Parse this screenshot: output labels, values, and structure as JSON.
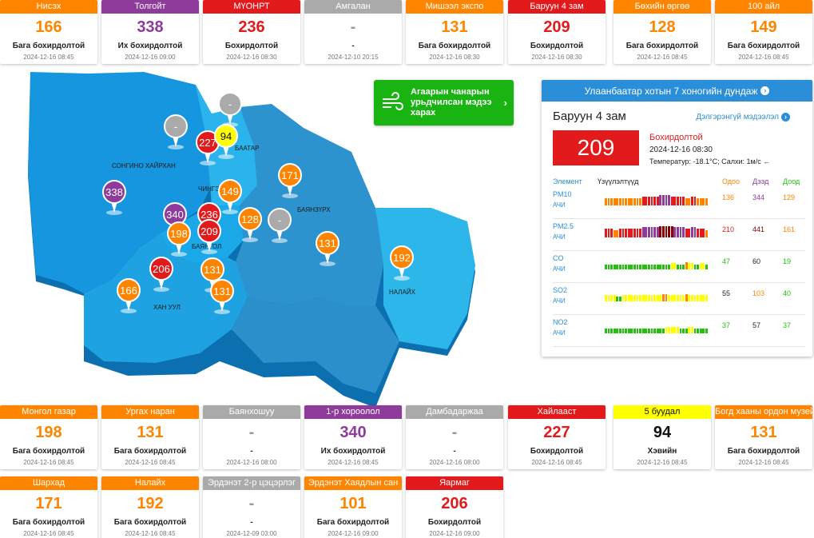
{
  "colors": {
    "good": "#20c20e",
    "moderate": "#ffff00",
    "low": "#ff8400",
    "high": "#e31a1c",
    "very_high": "#8e3b9c",
    "nodata": "#aaaaaa",
    "accent": "#2a8fd8",
    "forecast": "#19b312"
  },
  "top_cards": [
    {
      "name": "Нисэх",
      "value": "166",
      "status": "Бага бохирдолтой",
      "time": "2024-12-16 08:45",
      "level": "low"
    },
    {
      "name": "Толгойт",
      "value": "338",
      "status": "Их бохирдолтой",
      "time": "2024-12-16 09:00",
      "level": "very_high"
    },
    {
      "name": "МҮОНРТ",
      "value": "236",
      "status": "Бохирдолтой",
      "time": "2024-12-16 08:30",
      "level": "high"
    },
    {
      "name": "Амгалан",
      "value": "-",
      "status": "-",
      "time": "2024-12-10 20:15",
      "level": "nodata"
    },
    {
      "name": "Мишээл экспо",
      "value": "131",
      "status": "Бага бохирдолтой",
      "time": "2024-12-16 08:30",
      "level": "low"
    },
    {
      "name": "Баруун 4 зам",
      "value": "209",
      "status": "Бохирдолтой",
      "time": "2024-12-16 08:30",
      "level": "high"
    },
    {
      "name": "Бөхийн өргөө",
      "value": "128",
      "status": "Бага бохирдолтой",
      "time": "2024-12-16 08:45",
      "level": "low"
    },
    {
      "name": "100 айл",
      "value": "149",
      "status": "Бага бохирдолтой",
      "time": "2024-12-16 08:45",
      "level": "low"
    }
  ],
  "bottom_cards_row1": [
    {
      "name": "Монгол газар",
      "value": "198",
      "status": "Бага бохирдолтой",
      "time": "2024-12-16 08:45",
      "level": "low"
    },
    {
      "name": "Ургах наран",
      "value": "131",
      "status": "Бага бохирдолтой",
      "time": "2024-12-16 08:45",
      "level": "low"
    },
    {
      "name": "Баянхошуу",
      "value": "-",
      "status": "-",
      "time": "2024-12-16 08:00",
      "level": "nodata"
    },
    {
      "name": "1-р хороолол",
      "value": "340",
      "status": "Их бохирдолтой",
      "time": "2024-12-16 08:45",
      "level": "very_high"
    },
    {
      "name": "Дамбадаржаа",
      "value": "-",
      "status": "-",
      "time": "2024-12-16 08:00",
      "level": "nodata"
    },
    {
      "name": "Хайлааст",
      "value": "227",
      "status": "Бохирдолтой",
      "time": "2024-12-16 08:45",
      "level": "high"
    },
    {
      "name": "5 буудал",
      "value": "94",
      "status": "Хэвийн",
      "time": "2024-12-16 08:45",
      "level": "moderate"
    },
    {
      "name": "Богд хааны ордон музей",
      "value": "131",
      "status": "Бага бохирдолтой",
      "time": "2024-12-16 08:45",
      "level": "low"
    }
  ],
  "bottom_cards_row2": [
    {
      "name": "Шархад",
      "value": "171",
      "status": "Бага бохирдолтой",
      "time": "2024-12-16 08:45",
      "level": "low"
    },
    {
      "name": "Налайх",
      "value": "192",
      "status": "Бага бохирдолтой",
      "time": "2024-12-16 08:45",
      "level": "low"
    },
    {
      "name": "Эрдэнэт 2-р цэцэрлэг",
      "value": "-",
      "status": "-",
      "time": "2024-12-09 03:00",
      "level": "nodata"
    },
    {
      "name": "Эрдэнэт Хаядлын сан",
      "value": "101",
      "status": "Бага бохирдолтой",
      "time": "2024-12-16 09:00",
      "level": "low"
    },
    {
      "name": "Яармаг",
      "value": "206",
      "status": "Бохирдолтой",
      "time": "2024-12-16 09:00",
      "level": "high"
    }
  ],
  "map": {
    "district_labels": [
      "СОНГИНО ХАЙРХАН",
      "ЧИНГЭ",
      "БААТАР",
      "БАЯНЗҮРХ",
      "ХАН УУЛ",
      "БАЯНГОЛ",
      "НАЛАЙХ"
    ],
    "markers": [
      {
        "value": "-",
        "level": "nodata"
      },
      {
        "value": "-",
        "level": "nodata"
      },
      {
        "value": "227",
        "level": "high"
      },
      {
        "value": "94",
        "level": "moderate"
      },
      {
        "value": "171",
        "level": "low"
      },
      {
        "value": "338",
        "level": "very_high"
      },
      {
        "value": "149",
        "level": "low"
      },
      {
        "value": "340",
        "level": "very_high"
      },
      {
        "value": "236",
        "level": "high"
      },
      {
        "value": "128",
        "level": "low"
      },
      {
        "value": "-",
        "level": "nodata"
      },
      {
        "value": "198",
        "level": "low"
      },
      {
        "value": "209",
        "level": "high"
      },
      {
        "value": "131",
        "level": "low"
      },
      {
        "value": "192",
        "level": "low"
      },
      {
        "value": "206",
        "level": "high"
      },
      {
        "value": "131",
        "level": "low"
      },
      {
        "value": "166",
        "level": "low"
      },
      {
        "value": "131",
        "level": "low"
      }
    ]
  },
  "forecast": {
    "label": "Агаарын чанарын урьдчилсан мэдээ харах",
    "icon": "wind-icon"
  },
  "panel": {
    "header": "Улаанбаатар хотын 7 хоногийн дундаж",
    "station": "Баруун 4 зам",
    "more_link": "Дэлгэрэнгүй мэдээлэл",
    "value": "209",
    "status": "Бохирдолтой",
    "date": "2024-12-16 08:30",
    "weather": "Температур: -18.1°C; Салхи: 1м/с",
    "wind_arrow": "←",
    "col_element": "Элемент",
    "col_trend": "Үзүүлэлтүүд",
    "col_now": "Одоо",
    "col_max": "Дээд",
    "col_min": "Доод",
    "pollutants": [
      {
        "name": "PM10",
        "sub": "АЧИ",
        "now": "136",
        "max": "344",
        "min": "129",
        "now_level": "low",
        "max_level": "very_high",
        "min_level": "low",
        "trend": [
          2,
          2,
          2,
          2,
          2,
          2,
          2,
          2,
          2,
          2,
          2,
          2,
          2,
          3,
          3,
          3,
          3,
          3,
          3,
          4,
          4,
          4,
          4,
          3,
          3,
          3,
          3,
          3,
          2,
          2,
          3,
          3,
          2,
          2,
          2,
          2
        ]
      },
      {
        "name": "PM2.5",
        "sub": "АЧИ",
        "now": "210",
        "max": "441",
        "min": "161",
        "now_level": "high",
        "max_level": "dark_red",
        "min_level": "low",
        "trend": [
          3,
          3,
          3,
          2,
          2,
          3,
          3,
          3,
          3,
          3,
          3,
          3,
          3,
          4,
          4,
          4,
          4,
          4,
          4,
          5,
          5,
          5,
          5,
          5,
          4,
          4,
          4,
          4,
          3,
          3,
          4,
          4,
          3,
          3,
          3,
          2
        ]
      },
      {
        "name": "CO",
        "sub": "АЧИ",
        "now": "47",
        "max": "60",
        "min": "19",
        "now_level": "good",
        "max_level": "plain",
        "min_level": "good",
        "trend": [
          0,
          0,
          0,
          0,
          0,
          0,
          0,
          0,
          0,
          0,
          0,
          0,
          0,
          0,
          0,
          0,
          0,
          0,
          0,
          0,
          0,
          0,
          0,
          1,
          1,
          0,
          0,
          0,
          2,
          1,
          1,
          0,
          0,
          1,
          1,
          0
        ]
      },
      {
        "name": "SO2",
        "sub": "АЧИ",
        "now": "55",
        "max": "103",
        "min": "40",
        "now_level": "plain",
        "max_level": "low",
        "min_level": "good",
        "trend": [
          1,
          1,
          1,
          1,
          0,
          0,
          1,
          1,
          1,
          1,
          1,
          1,
          1,
          1,
          1,
          1,
          1,
          1,
          1,
          1,
          2,
          2,
          1,
          1,
          1,
          1,
          1,
          1,
          2,
          1,
          1,
          1,
          1,
          1,
          1,
          1
        ]
      },
      {
        "name": "NO2",
        "sub": "АЧИ",
        "now": "37",
        "max": "57",
        "min": "37",
        "now_level": "good",
        "max_level": "plain",
        "min_level": "good",
        "trend": [
          0,
          0,
          0,
          0,
          0,
          0,
          0,
          0,
          0,
          0,
          0,
          0,
          0,
          0,
          0,
          0,
          0,
          0,
          0,
          0,
          0,
          1,
          1,
          1,
          1,
          1,
          0,
          0,
          0,
          1,
          1,
          0,
          0,
          0,
          0,
          0
        ]
      }
    ]
  }
}
